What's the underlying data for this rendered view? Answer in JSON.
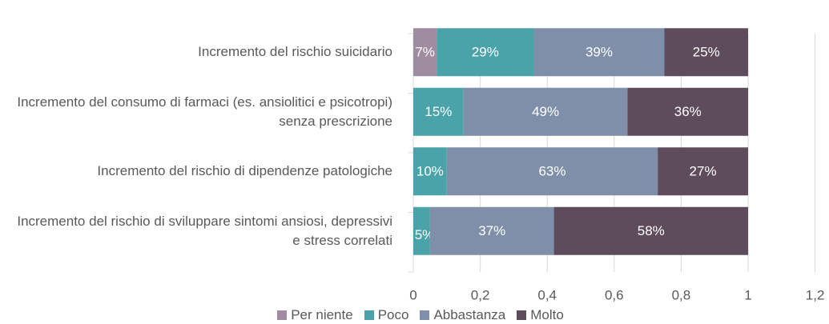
{
  "chart_data": {
    "type": "stacked_barh",
    "categories": [
      "Incremento del rischio suicidario",
      "Incremento del consumo di farmaci (es. ansiolitici e psicotropi) senza prescrizione",
      "Incremento del rischio di dipendenze patologiche",
      "Incremento del rischio di sviluppare sintomi ansiosi, depressivi e stress correlati"
    ],
    "series": [
      {
        "name": "Per niente",
        "color": "#a08ca0",
        "values": [
          0.07,
          0,
          0,
          0
        ],
        "value_labels": [
          "7%",
          null,
          null,
          null
        ]
      },
      {
        "name": "Poco",
        "color": "#4aa3a8",
        "values": [
          0.29,
          0.15,
          0.1,
          0.05
        ],
        "value_labels": [
          "29%",
          "15%",
          "10%",
          "5%"
        ]
      },
      {
        "name": "Abbastanza",
        "color": "#7f8fa9",
        "values": [
          0.39,
          0.49,
          0.63,
          0.37
        ],
        "value_labels": [
          "39%",
          "49%",
          "63%",
          "37%"
        ]
      },
      {
        "name": "Molto",
        "color": "#5e4b5c",
        "values": [
          0.25,
          0.36,
          0.27,
          0.58
        ],
        "value_labels": [
          "25%",
          "36%",
          "27%",
          "58%"
        ]
      }
    ],
    "xlim": [
      0,
      1.2
    ],
    "xticks": [
      0,
      {
        "value": 0.2,
        "label": "0,2"
      },
      {
        "value": 0.4,
        "label": "0,4"
      },
      {
        "value": 0.6,
        "label": "0,6"
      },
      {
        "value": 0.8,
        "label": "0,8"
      },
      1,
      {
        "value": 1.2,
        "label": "1,2"
      }
    ],
    "grid": true,
    "legend": "bottom"
  }
}
